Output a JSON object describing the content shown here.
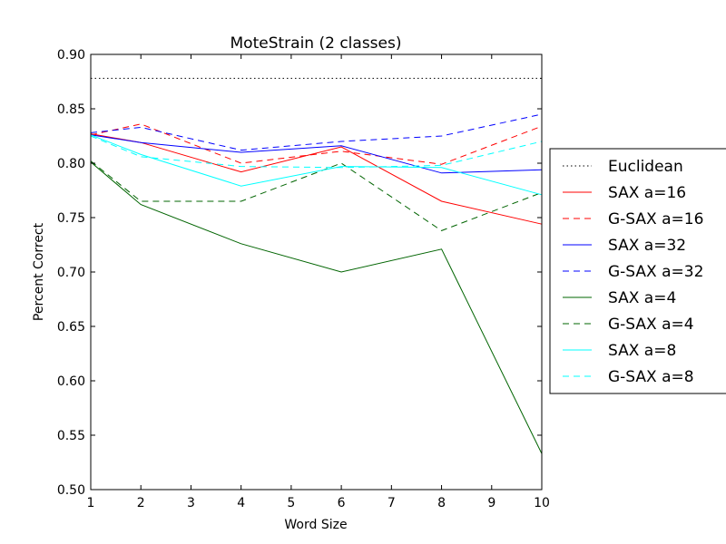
{
  "chart_data": {
    "type": "line",
    "title": "MoteStrain (2 classes)",
    "xlabel": "Word Size",
    "ylabel": "Percent Correct",
    "xlim": [
      1,
      10
    ],
    "ylim": [
      0.5,
      0.9
    ],
    "x_ticks": [
      "1",
      "2",
      "3",
      "4",
      "5",
      "6",
      "7",
      "8",
      "9",
      "10"
    ],
    "y_ticks": [
      "0.50",
      "0.55",
      "0.60",
      "0.65",
      "0.70",
      "0.75",
      "0.80",
      "0.85",
      "0.90"
    ],
    "grid": false,
    "legend_position": "outside-right",
    "series": [
      {
        "name": "Euclidean",
        "color": "#000000",
        "style": "dotted",
        "x": [
          1,
          10
        ],
        "values": [
          0.878,
          0.878
        ]
      },
      {
        "name": "SAX a=16",
        "color": "#ff0000",
        "style": "solid",
        "x": [
          1,
          2,
          4,
          6,
          8,
          10
        ],
        "values": [
          0.827,
          0.819,
          0.792,
          0.815,
          0.765,
          0.744
        ]
      },
      {
        "name": "G-SAX a=16",
        "color": "#ff0000",
        "style": "dashed",
        "x": [
          1,
          2,
          4,
          6,
          8,
          10
        ],
        "values": [
          0.826,
          0.836,
          0.8,
          0.811,
          0.799,
          0.834
        ]
      },
      {
        "name": "SAX a=32",
        "color": "#0000ff",
        "style": "solid",
        "x": [
          1,
          2,
          4,
          6,
          8,
          10
        ],
        "values": [
          0.826,
          0.819,
          0.81,
          0.816,
          0.791,
          0.794
        ]
      },
      {
        "name": "G-SAX a=32",
        "color": "#0000ff",
        "style": "dashed",
        "x": [
          1,
          2,
          4,
          6,
          8,
          10
        ],
        "values": [
          0.828,
          0.833,
          0.812,
          0.82,
          0.825,
          0.845
        ]
      },
      {
        "name": "SAX a=4",
        "color": "#006400",
        "style": "solid",
        "x": [
          1,
          2,
          4,
          6,
          8,
          10
        ],
        "values": [
          0.801,
          0.762,
          0.726,
          0.7,
          0.721,
          0.533
        ]
      },
      {
        "name": "G-SAX a=4",
        "color": "#006400",
        "style": "dashed",
        "x": [
          1,
          2,
          4,
          6,
          8,
          10
        ],
        "values": [
          0.802,
          0.765,
          0.765,
          0.8,
          0.738,
          0.773
        ]
      },
      {
        "name": "SAX a=8",
        "color": "#00ffff",
        "style": "solid",
        "x": [
          1,
          2,
          4,
          6,
          8,
          10
        ],
        "values": [
          0.826,
          0.808,
          0.779,
          0.797,
          0.796,
          0.771
        ]
      },
      {
        "name": "G-SAX a=8",
        "color": "#00ffff",
        "style": "dashed",
        "x": [
          1,
          2,
          4,
          6,
          8,
          10
        ],
        "values": [
          0.825,
          0.806,
          0.797,
          0.796,
          0.798,
          0.82
        ]
      }
    ]
  }
}
